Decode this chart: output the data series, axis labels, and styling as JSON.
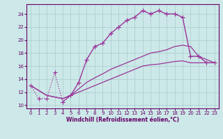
{
  "xlabel": "Windchill (Refroidissement éolien,°C)",
  "bg_color": "#cce8e8",
  "grid_color": "#aacccc",
  "line_color": "#993399",
  "xlim": [
    -0.5,
    23.5
  ],
  "ylim": [
    9.5,
    25.5
  ],
  "yticks": [
    10,
    12,
    14,
    16,
    18,
    20,
    22,
    24
  ],
  "xticks": [
    0,
    1,
    2,
    3,
    4,
    5,
    6,
    7,
    8,
    9,
    10,
    11,
    12,
    13,
    14,
    15,
    16,
    17,
    18,
    19,
    20,
    21,
    22,
    23
  ],
  "curve1_x": [
    0,
    1,
    2,
    3,
    4,
    5,
    6,
    7,
    8,
    9,
    10,
    11,
    12,
    13,
    14,
    15,
    16,
    17,
    18,
    19,
    20,
    21,
    22
  ],
  "curve1_y": [
    13,
    11,
    11,
    15,
    10.5,
    11.5,
    13.5,
    17,
    19,
    19.5,
    21,
    22,
    23,
    23.5,
    24.5,
    24,
    24.5,
    24,
    24,
    23.5,
    17.5,
    17.5,
    16.5
  ],
  "curve1_style": "dotted_markers",
  "curve2_x": [
    4,
    5,
    6,
    7,
    8,
    9,
    10,
    11,
    12,
    13,
    14,
    15,
    16,
    17,
    18,
    19,
    20,
    21,
    22,
    23
  ],
  "curve2_y": [
    10.5,
    11.5,
    13.5,
    17,
    19,
    19.5,
    21,
    22,
    23,
    23.5,
    24.5,
    24,
    24.5,
    24,
    24,
    23.5,
    17.5,
    17.5,
    16.5,
    16.5
  ],
  "curve2_style": "solid_markers",
  "curve3_x": [
    0,
    2,
    4,
    5,
    6,
    7,
    8,
    9,
    10,
    11,
    12,
    13,
    14,
    15,
    16,
    17,
    18,
    19,
    20,
    21,
    22,
    23
  ],
  "curve3_y": [
    13,
    11.5,
    11,
    11.5,
    12.5,
    13.5,
    14.2,
    14.8,
    15.5,
    16.0,
    16.5,
    17.0,
    17.5,
    18.0,
    18.2,
    18.5,
    19.0,
    19.2,
    19.0,
    17.5,
    17.0,
    16.5
  ],
  "curve3_style": "solid",
  "curve4_x": [
    0,
    2,
    4,
    5,
    6,
    7,
    8,
    9,
    10,
    11,
    12,
    13,
    14,
    15,
    16,
    17,
    18,
    19,
    20,
    21,
    22,
    23
  ],
  "curve4_y": [
    13,
    11.5,
    11,
    11.5,
    12.0,
    12.5,
    13.0,
    13.5,
    14.0,
    14.5,
    15.0,
    15.5,
    16.0,
    16.2,
    16.3,
    16.5,
    16.7,
    16.8,
    16.5,
    16.5,
    16.5,
    16.5
  ],
  "curve4_style": "solid"
}
